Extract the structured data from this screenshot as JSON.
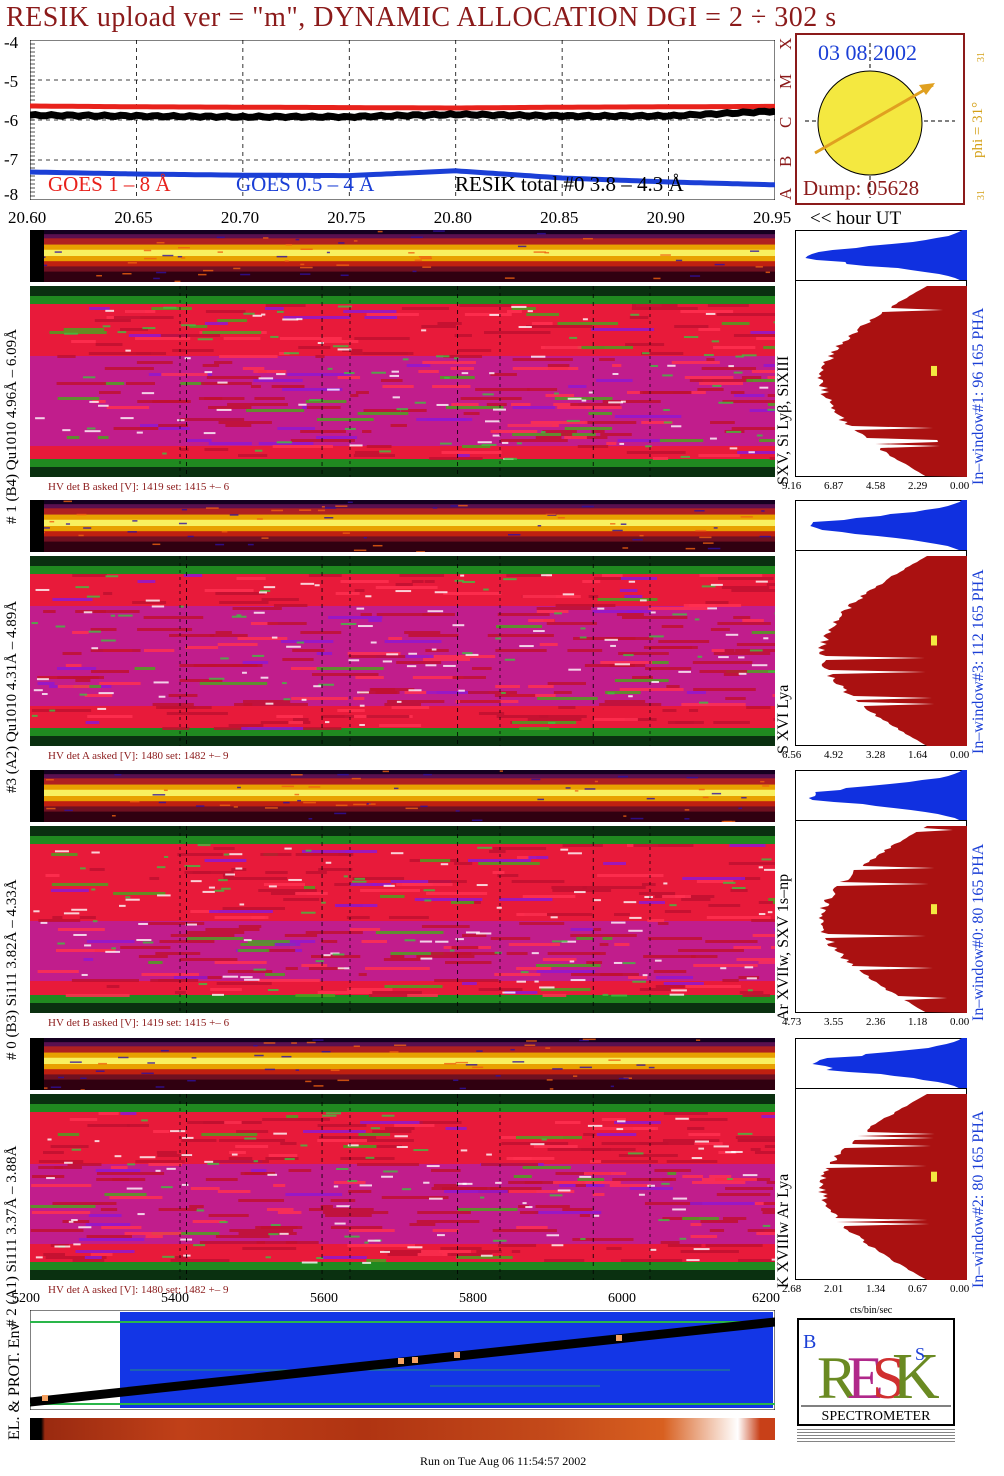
{
  "title": "RESIK upload ver = \"m\", DYNAMIC ALLOCATION  DGI =   2 ÷ 302 s",
  "footer": "Run on Tue Aug 06 11:54:57 2002",
  "sun": {
    "date": "03 08 2002",
    "phi": "phi = 31°",
    "dump": "Dump: 05628",
    "side_top": "31",
    "side_bot": "31"
  },
  "goes_class_letters": [
    "X",
    "M",
    "C",
    "B",
    "A"
  ],
  "goes_legend": {
    "g18": "GOES 1 – 8 Å",
    "g054": "GOES 0.5 – 4 Å",
    "resik": "RESIK total #0  3.8 – 4.3 Å"
  },
  "colors": {
    "g18": "#e8221c",
    "g054": "#1b3fd6",
    "resik": "#000000",
    "frame": "#8b1a1a",
    "hist_main": "#aa1111",
    "hist_pha": "#1030e0"
  },
  "chart_data": [
    {
      "type": "line",
      "title": "GOES / RESIK light curves",
      "xlabel": "hour UT",
      "x_tick_labels": [
        "20.60",
        "20.65",
        "20.70",
        "20.75",
        "20.80",
        "20.85",
        "20.90",
        "20.95"
      ],
      "x_axis_suffix": "<< hour UT",
      "xlim": [
        20.6,
        20.95
      ],
      "ylim": [
        -8,
        -4
      ],
      "y_tick_labels": [
        "-4",
        "-5",
        "-6",
        "-7",
        "-8"
      ],
      "series": [
        {
          "name": "GOES 1 – 8 Å",
          "x": [
            20.6,
            20.65,
            20.7,
            20.75,
            20.8,
            20.85,
            20.9,
            20.95
          ],
          "values": [
            -5.65,
            -5.67,
            -5.68,
            -5.69,
            -5.7,
            -5.68,
            -5.67,
            -5.66
          ]
        },
        {
          "name": "GOES 0.5 – 4 Å",
          "x": [
            20.6,
            20.65,
            20.7,
            20.75,
            20.8,
            20.85,
            20.9,
            20.95
          ],
          "values": [
            -7.3,
            -7.35,
            -7.38,
            -7.39,
            -7.27,
            -7.45,
            -7.55,
            -7.62
          ]
        },
        {
          "name": "RESIK total #0  3.8 – 4.3 Å",
          "x": [
            20.6,
            20.65,
            20.7,
            20.75,
            20.8,
            20.85,
            20.9,
            20.95
          ],
          "values": [
            -5.88,
            -5.9,
            -5.92,
            -5.92,
            -5.86,
            -5.9,
            -5.9,
            -5.78
          ]
        }
      ]
    },
    {
      "type": "heatmap",
      "channels": [
        {
          "label": "# 1 (B4) Qu1010 4.96Å – 6.09Å",
          "hv": "HV det B asked [V]:  1419 set:  1415 +–    6",
          "lines": "SXV, Si Lyβ, SiXIII",
          "window": "In–window#1:   96 165  PHA",
          "hist_ticks": [
            "9.16",
            "6.87",
            "4.58",
            "2.29",
            "0.00"
          ]
        },
        {
          "label": "#3 (A2) Qu1010  4.31Å – 4.89Å",
          "hv": "HV det A asked [V]:  1480 set:  1482 +–    9",
          "lines": "S XVI Lya",
          "window": "In–window#3:  112 165  PHA",
          "hist_ticks": [
            "6.56",
            "4.92",
            "3.28",
            "1.64",
            "0.00"
          ]
        },
        {
          "label": "# 0 (B3) Si111  3.82Å – 4.33Å",
          "hv": "HV det B asked [V]:  1419 set:  1415 +–    6",
          "lines": "Ar XVIIw,  SXV 1s–np",
          "window": "In–window#0:   80 165  PHA",
          "hist_ticks": [
            "4.73",
            "3.55",
            "2.36",
            "1.18",
            "0.00"
          ]
        },
        {
          "label": "# 2 (A1) Si111  3.37Å – 3.88Å",
          "hv": "HV det A asked [V]:  1480 set:  1482 +–    9",
          "lines": "K XVIIIw  Ar Lya",
          "window": "In–window#2:   80 165  PHA",
          "hist_ticks": [
            "2.68",
            "2.01",
            "1.34",
            "0.67",
            "0.00"
          ]
        }
      ],
      "hist_xlabel": "cts/bin/sec"
    },
    {
      "type": "line",
      "title": "EL. & PROT. Env",
      "x_tick_labels": [
        "5200",
        "5400",
        "5600",
        "5800",
        "6000",
        "6200"
      ],
      "xlim": [
        5200,
        6200
      ]
    }
  ],
  "logo": {
    "text": "RESIK",
    "bottom": "SPECTROMETER"
  }
}
